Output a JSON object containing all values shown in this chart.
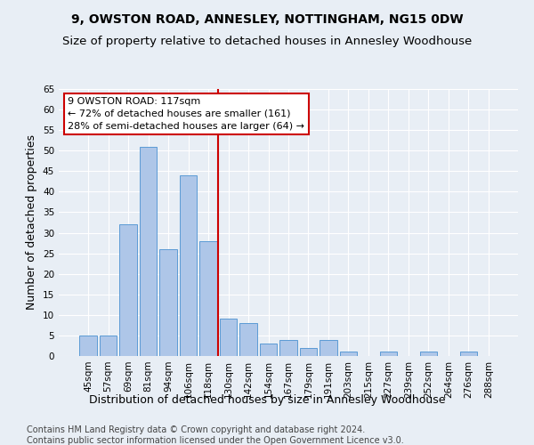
{
  "title": "9, OWSTON ROAD, ANNESLEY, NOTTINGHAM, NG15 0DW",
  "subtitle": "Size of property relative to detached houses in Annesley Woodhouse",
  "xlabel": "Distribution of detached houses by size in Annesley Woodhouse",
  "ylabel": "Number of detached properties",
  "footnote1": "Contains HM Land Registry data © Crown copyright and database right 2024.",
  "footnote2": "Contains public sector information licensed under the Open Government Licence v3.0.",
  "categories": [
    "45sqm",
    "57sqm",
    "69sqm",
    "81sqm",
    "94sqm",
    "106sqm",
    "118sqm",
    "130sqm",
    "142sqm",
    "154sqm",
    "167sqm",
    "179sqm",
    "191sqm",
    "203sqm",
    "215sqm",
    "227sqm",
    "239sqm",
    "252sqm",
    "264sqm",
    "276sqm",
    "288sqm"
  ],
  "values": [
    5,
    5,
    32,
    51,
    26,
    44,
    28,
    9,
    8,
    3,
    4,
    2,
    4,
    1,
    0,
    1,
    0,
    1,
    0,
    1,
    0
  ],
  "bar_color": "#aec6e8",
  "bar_edge_color": "#5b9bd5",
  "vline_x_index": 6,
  "vline_color": "#cc0000",
  "annotation_line1": "9 OWSTON ROAD: 117sqm",
  "annotation_line2": "← 72% of detached houses are smaller (161)",
  "annotation_line3": "28% of semi-detached houses are larger (64) →",
  "annotation_box_color": "#ffffff",
  "annotation_border_color": "#cc0000",
  "ylim": [
    0,
    65
  ],
  "yticks": [
    0,
    5,
    10,
    15,
    20,
    25,
    30,
    35,
    40,
    45,
    50,
    55,
    60,
    65
  ],
  "bg_color": "#e8eef5",
  "plot_bg_color": "#e8eef5",
  "title_fontsize": 10,
  "subtitle_fontsize": 9.5,
  "xlabel_fontsize": 9,
  "ylabel_fontsize": 9,
  "tick_fontsize": 7.5,
  "annot_fontsize": 8,
  "footnote_fontsize": 7
}
